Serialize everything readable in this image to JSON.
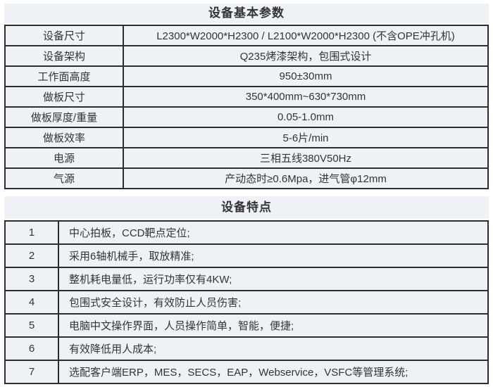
{
  "page": {
    "background": "#ffffff",
    "cell_background": "#eef2f7",
    "border_color": "#2d2d2d",
    "text_color": "#333333"
  },
  "params_table": {
    "title": "设备基本参数",
    "rows": [
      {
        "label": "设备尺寸",
        "value": "L2300*W2000*H2300 / L2100*W2000*H2300 (不含OPE冲孔机)"
      },
      {
        "label": "设备架构",
        "value": "Q235烤漆架构，包围式设计"
      },
      {
        "label": "工作面高度",
        "value": "950±30mm"
      },
      {
        "label": "做板尺寸",
        "value": "350*400mm~630*730mm"
      },
      {
        "label": "做板厚度/重量",
        "value": "0.05-1.0mm"
      },
      {
        "label": "做板效率",
        "value": "5-6片/min"
      },
      {
        "label": "电源",
        "value": "三相五线380V50Hz"
      },
      {
        "label": "气源",
        "value": "产动态时≥0.6Mpa，进气管φ12mm"
      }
    ]
  },
  "features_table": {
    "title": "设备特点",
    "rows": [
      {
        "num": "1",
        "text": "中心拍板，CCD靶点定位;"
      },
      {
        "num": "2",
        "text": "采用6轴机械手，取放精准;"
      },
      {
        "num": "3",
        "text": "整机耗电量低，运行功率仅有4KW;"
      },
      {
        "num": "4",
        "text": "包围式安全设计，有效防止人员伤害;"
      },
      {
        "num": "5",
        "text": "电脑中文操作界面，人员操作简单，智能，便捷;"
      },
      {
        "num": "6",
        "text": "有效降低用人成本;"
      },
      {
        "num": "7",
        "text": "选配客户端ERP，MES，SECS，EAP，Webservice，VSFC等管理系统;"
      }
    ]
  }
}
